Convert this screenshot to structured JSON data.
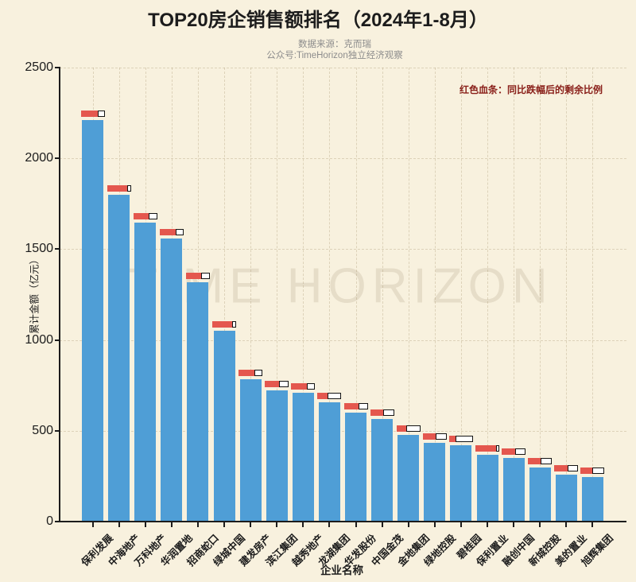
{
  "page": {
    "watermark": "TIME HORIZON",
    "annotation": "红色血条：同比跌幅后的剩余比例",
    "subtitle_line1": "数据来源：克而瑞",
    "subtitle_line2": "公众号:TimeHorizon独立经济观察"
  },
  "chart_data": {
    "type": "bar",
    "title": "TOP20房企销售额排名（2024年1-8月）",
    "xlabel": "企业名称",
    "ylabel": "累计金额（亿元）",
    "ylim": [
      0,
      2500
    ],
    "yticks": [
      0,
      500,
      1000,
      1500,
      2000,
      2500
    ],
    "grid": true,
    "legend": "none",
    "categories": [
      "保利发展",
      "中海地产",
      "万科地产",
      "华润置地",
      "招商蛇口",
      "绿城中国",
      "建发房产",
      "滨江集团",
      "越秀地产",
      "龙湖集团",
      "华发股份",
      "中国金茂",
      "金地集团",
      "绿地控股",
      "碧桂园",
      "保利置业",
      "融创中国",
      "新城控股",
      "美的置业",
      "旭辉集团"
    ],
    "series": [
      {
        "name": "累计金额（亿元）",
        "values": [
          2210,
          1800,
          1645,
          1560,
          1320,
          1050,
          785,
          722,
          708,
          655,
          600,
          565,
          478,
          434,
          420,
          368,
          350,
          298,
          258,
          245
        ]
      }
    ],
    "health_ratios": [
      0.71,
      0.85,
      0.66,
      0.66,
      0.63,
      0.84,
      0.68,
      0.61,
      0.65,
      0.43,
      0.6,
      0.56,
      0.42,
      0.54,
      0.27,
      0.85,
      0.55,
      0.53,
      0.55,
      0.49
    ],
    "colors": {
      "background": "#f8f1de",
      "bar": "#4f9ed6",
      "health_fill": "#e4574e",
      "health_empty": "#ffffff",
      "health_border": "#141414",
      "annotation_text": "#8a201a",
      "subtitle_text": "#8c8c8c",
      "axis_text": "#1c1c1c"
    }
  }
}
